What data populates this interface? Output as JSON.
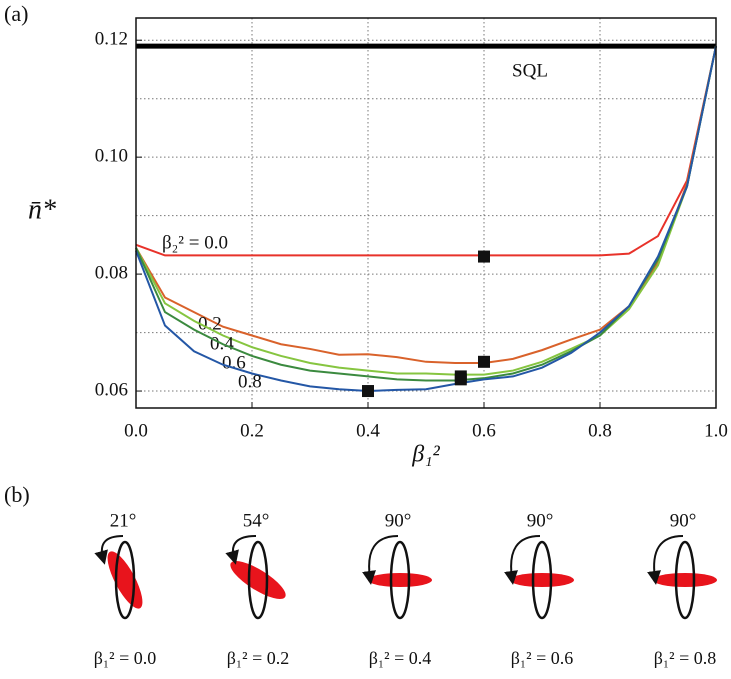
{
  "chart_data": {
    "type": "line",
    "panel_label": "(a)",
    "x_label": "β₁²",
    "y_label": "n̄*",
    "x": [
      0,
      0.05,
      0.1,
      0.15,
      0.2,
      0.25,
      0.3,
      0.35,
      0.4,
      0.45,
      0.5,
      0.55,
      0.6,
      0.65,
      0.7,
      0.75,
      0.8,
      0.85,
      0.9,
      0.95,
      1.0
    ],
    "series": [
      {
        "name": "β₂² = 0.0",
        "color": "#e8322a",
        "values": [
          0.085,
          0.0832,
          0.0832,
          0.0832,
          0.0832,
          0.0832,
          0.0832,
          0.0832,
          0.0832,
          0.0832,
          0.0832,
          0.0832,
          0.0832,
          0.0832,
          0.0832,
          0.0832,
          0.0832,
          0.0835,
          0.0865,
          0.096,
          0.119
        ]
      },
      {
        "name": "0.2",
        "color": "#d9622b",
        "values": [
          0.0845,
          0.076,
          0.0735,
          0.071,
          0.0695,
          0.068,
          0.0672,
          0.0662,
          0.0663,
          0.0658,
          0.065,
          0.0648,
          0.0648,
          0.0655,
          0.067,
          0.0688,
          0.0705,
          0.0745,
          0.082,
          0.0955,
          0.119
        ]
      },
      {
        "name": "0.4",
        "color": "#86c540",
        "values": [
          0.0845,
          0.075,
          0.072,
          0.0695,
          0.0675,
          0.066,
          0.0648,
          0.064,
          0.0635,
          0.063,
          0.063,
          0.0628,
          0.0628,
          0.0635,
          0.065,
          0.0672,
          0.0695,
          0.074,
          0.0815,
          0.095,
          0.119
        ]
      },
      {
        "name": "0.6",
        "color": "#3b8a3f",
        "values": [
          0.0845,
          0.0735,
          0.0705,
          0.068,
          0.066,
          0.0645,
          0.0635,
          0.063,
          0.0625,
          0.062,
          0.0618,
          0.0618,
          0.0622,
          0.063,
          0.0645,
          0.0668,
          0.0695,
          0.0745,
          0.0825,
          0.095,
          0.119
        ]
      },
      {
        "name": "0.8",
        "color": "#2457a6",
        "values": [
          0.084,
          0.0712,
          0.0668,
          0.0645,
          0.063,
          0.0618,
          0.0608,
          0.0603,
          0.06,
          0.0602,
          0.0603,
          0.0612,
          0.062,
          0.0625,
          0.064,
          0.0665,
          0.07,
          0.0745,
          0.083,
          0.095,
          0.119
        ]
      }
    ],
    "markers": {
      "color": "#111111",
      "x": [
        0.6,
        0.6,
        0.56,
        0.56,
        0.4
      ],
      "values": [
        0.083,
        0.065,
        0.0625,
        0.062,
        0.06
      ]
    },
    "reference_line": {
      "label": "SQL",
      "value": 0.119,
      "color": "#000000"
    },
    "xlim": [
      0,
      1.0
    ],
    "xticks": [
      {
        "value": 0,
        "label": "0.0"
      },
      0.2,
      0.4,
      0.6,
      0.8,
      {
        "value": 1.0,
        "label": "1.0"
      }
    ],
    "ylim": [
      0.0571,
      0.1238
    ],
    "yticks": [
      0.06,
      0.08,
      {
        "value": 0.1,
        "label": "0.10"
      },
      0.12
    ],
    "y_minor_grid": [
      0.07,
      0.09,
      0.11
    ],
    "grid": true
  },
  "panel_b": {
    "panel_label": "(b)",
    "items": [
      {
        "angle": "21°",
        "caption": "β₁² = 0.0"
      },
      {
        "angle": "54°",
        "caption": "β₁² = 0.2"
      },
      {
        "angle": "90°",
        "caption": "β₁² = 0.4"
      },
      {
        "angle": "90°",
        "caption": "β₁² = 0.6"
      },
      {
        "angle": "90°",
        "caption": "β₁² = 0.8"
      }
    ]
  }
}
